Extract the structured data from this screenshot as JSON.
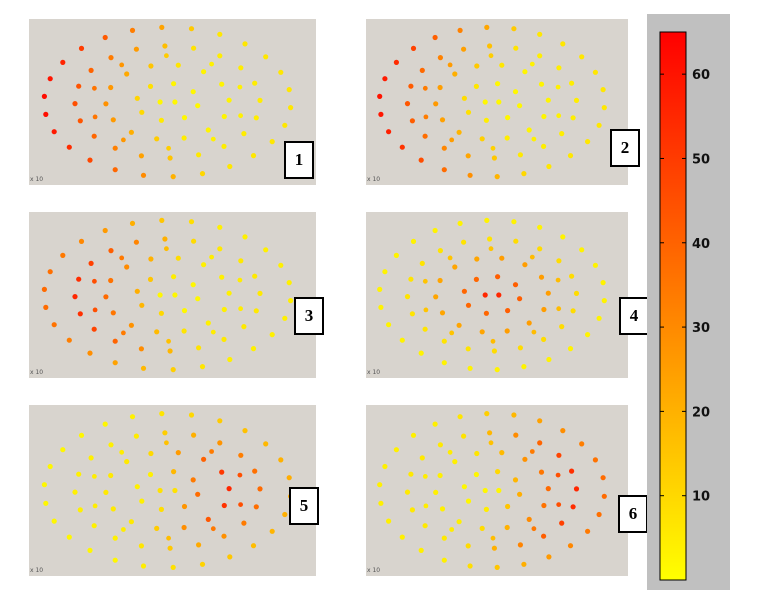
{
  "panels": [
    {
      "label": "1",
      "hot_ring": 4,
      "hot_side": "left",
      "max_value": 62
    },
    {
      "label": "2",
      "hot_ring": 4,
      "hot_side": "left",
      "max_value": 60
    },
    {
      "label": "3",
      "hot_ring": 3,
      "hot_side": "left",
      "max_value": 55
    },
    {
      "label": "4",
      "hot_ring": 0,
      "hot_side": "center",
      "max_value": 55
    },
    {
      "label": "5",
      "hot_ring": 2,
      "hot_side": "right",
      "max_value": 55
    },
    {
      "label": "6",
      "hot_ring": 3,
      "hot_side": "right",
      "max_value": 55
    }
  ],
  "panel_axis_text": "x 10",
  "colorbar": {
    "min": 0,
    "max": 65,
    "ticks": [
      "10",
      "20",
      "30",
      "40",
      "50",
      "60"
    ],
    "colors": [
      "#ffff00",
      "#ffc000",
      "#ff8000",
      "#ff4000",
      "#ff0000"
    ]
  }
}
